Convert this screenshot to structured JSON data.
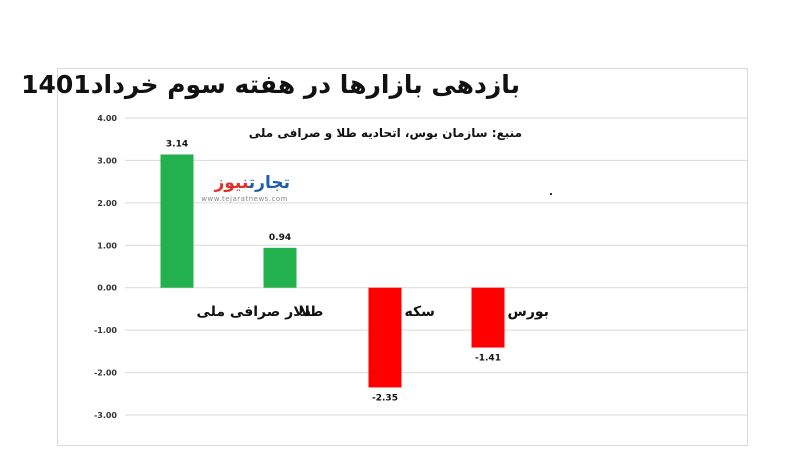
{
  "logo": {
    "word1": "تجارت",
    "word2": "نیوز",
    "url": "www.tejaratnews.com"
  },
  "chart_data": {
    "type": "bar",
    "title": "بازدهی بازارها در هفته سوم خرداد1401",
    "subtitle": "منبع: سازمان بوس، اتحادیه طلا و صرافی ملی",
    "categories": [
      "دلار صرافی ملی",
      "طلا",
      "سکه",
      "بورس"
    ],
    "values": [
      3.14,
      0.94,
      -2.35,
      -1.41
    ],
    "value_labels": [
      "3.14",
      "0.94",
      "-2.35",
      "-1.41"
    ],
    "ylim": [
      -3,
      4
    ],
    "y_ticks": [
      "4.00",
      "3.00",
      "2.00",
      "1.00",
      "0.00",
      "-1.00",
      "-2.00",
      "-3.00"
    ],
    "y_tick_values": [
      4,
      3,
      2,
      1,
      0,
      -1,
      -2,
      -3
    ],
    "grid": true,
    "xlabel": "",
    "ylabel": "",
    "colors": {
      "positive": "#22b14c",
      "negative": "#ff0000",
      "grid": "#d9d9d9"
    }
  }
}
